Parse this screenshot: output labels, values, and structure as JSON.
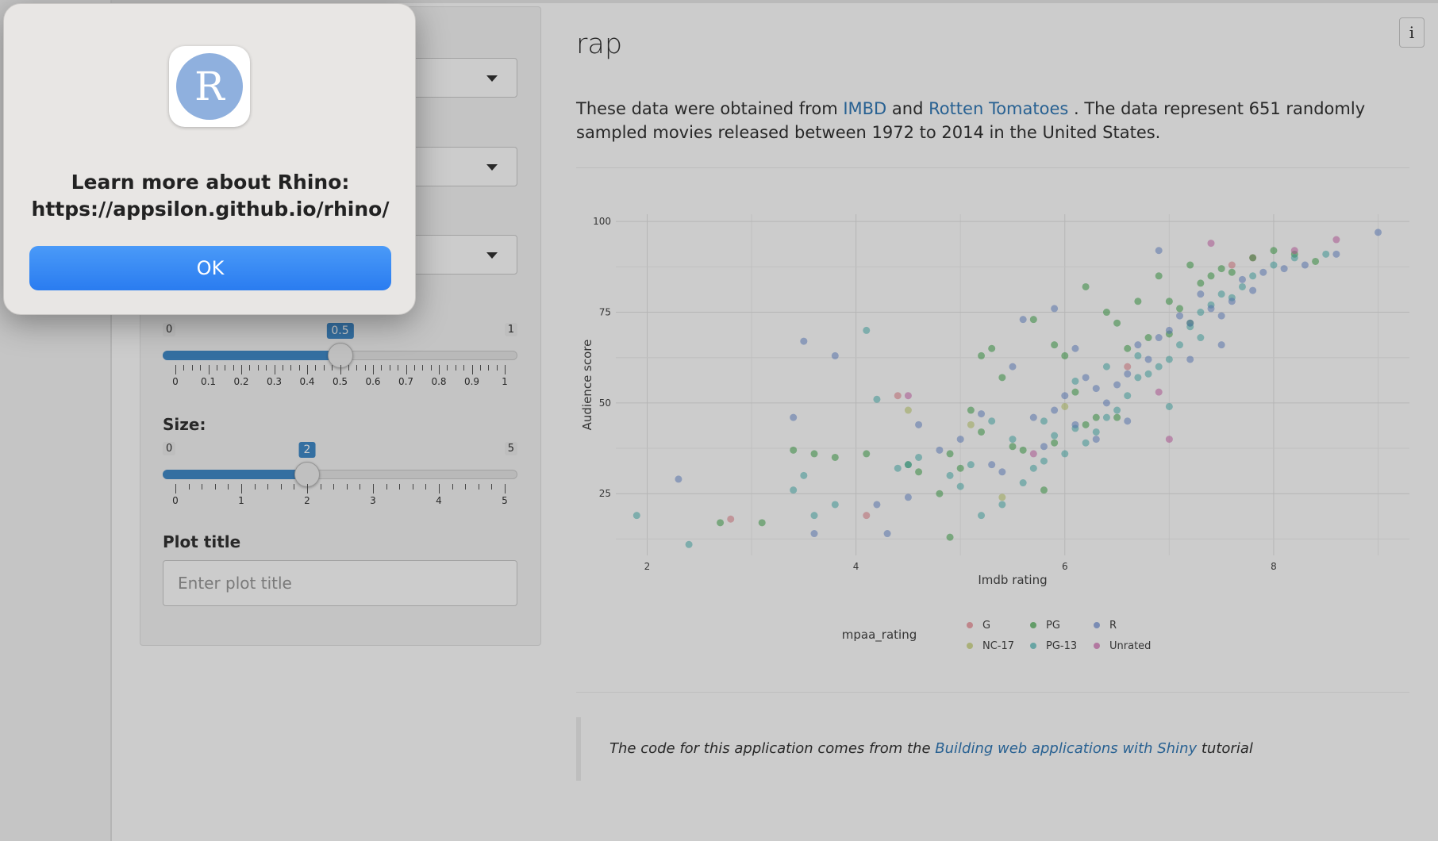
{
  "dialog": {
    "icon_letter": "R",
    "message": "Learn more about Rhino: https://appsilon.github.io/rhino/",
    "ok_label": "OK"
  },
  "sidebar": {
    "alpha_slider": {
      "min": "0",
      "max": "1",
      "value": "0.5",
      "value_fraction": 0.5,
      "tick_labels": [
        "0",
        "0.1",
        "0.2",
        "0.3",
        "0.4",
        "0.5",
        "0.6",
        "0.7",
        "0.8",
        "0.9",
        "1"
      ]
    },
    "size_label": "Size:",
    "size_slider": {
      "min": "0",
      "max": "5",
      "value": "2",
      "value_fraction": 0.4,
      "tick_labels": [
        "0",
        "1",
        "2",
        "3",
        "4",
        "5"
      ]
    },
    "plot_title_label": "Plot title",
    "plot_title_placeholder": "Enter plot title"
  },
  "main": {
    "title": "rap",
    "desc_pre": "These data were obtained from ",
    "imbd_link": "IMBD",
    "desc_and": " and ",
    "rt_link": "Rotten Tomatoes",
    "desc_post": " . The data represent 651 randomly sampled movies released between 1972 to 2014 in the United States.",
    "quote_pre": "The code for this application comes from the ",
    "quote_link": "Building web applications with Shiny",
    "quote_post": " tutorial",
    "info_icon": "i"
  },
  "chart_data": {
    "type": "scatter",
    "xlabel": "Imdb rating",
    "ylabel": "Audience score",
    "xlim": [
      1.7,
      9.3
    ],
    "ylim": [
      8,
      102
    ],
    "x_ticks": [
      2,
      4,
      6,
      8
    ],
    "y_ticks": [
      25,
      50,
      75,
      100
    ],
    "grid": true,
    "legend_title": "mpaa_rating",
    "legend_position": "bottom",
    "series": [
      {
        "name": "G",
        "color": "#e8838c",
        "points": [
          [
            2.8,
            18
          ],
          [
            4.4,
            52
          ],
          [
            4.1,
            19
          ],
          [
            7.6,
            88
          ],
          [
            6.6,
            60
          ],
          [
            7.8,
            90
          ]
        ]
      },
      {
        "name": "NC-17",
        "color": "#c3cf6c",
        "points": [
          [
            4.5,
            48
          ],
          [
            5.1,
            44
          ],
          [
            5.4,
            24
          ],
          [
            6.0,
            49
          ]
        ]
      },
      {
        "name": "PG",
        "color": "#44ab4e",
        "points": [
          [
            2.7,
            17
          ],
          [
            3.1,
            17
          ],
          [
            3.4,
            37
          ],
          [
            3.6,
            36
          ],
          [
            3.8,
            35
          ],
          [
            4.1,
            36
          ],
          [
            4.5,
            33
          ],
          [
            4.8,
            25
          ],
          [
            4.9,
            13
          ],
          [
            5.0,
            32
          ],
          [
            5.1,
            48
          ],
          [
            5.2,
            63
          ],
          [
            5.3,
            65
          ],
          [
            5.4,
            57
          ],
          [
            5.6,
            37
          ],
          [
            5.7,
            73
          ],
          [
            5.8,
            26
          ],
          [
            5.9,
            66
          ],
          [
            6.0,
            63
          ],
          [
            6.1,
            53
          ],
          [
            6.2,
            82
          ],
          [
            6.3,
            46
          ],
          [
            6.4,
            75
          ],
          [
            6.5,
            72
          ],
          [
            6.6,
            65
          ],
          [
            6.7,
            78
          ],
          [
            6.8,
            68
          ],
          [
            6.9,
            85
          ],
          [
            7.0,
            78
          ],
          [
            7.1,
            76
          ],
          [
            7.2,
            88
          ],
          [
            7.3,
            83
          ],
          [
            7.4,
            85
          ],
          [
            7.5,
            87
          ],
          [
            7.6,
            86
          ],
          [
            7.8,
            90
          ],
          [
            8.0,
            92
          ],
          [
            8.4,
            89
          ],
          [
            4.6,
            31
          ],
          [
            4.9,
            36
          ],
          [
            5.2,
            42
          ],
          [
            5.5,
            38
          ],
          [
            5.9,
            39
          ],
          [
            6.2,
            44
          ],
          [
            6.5,
            46
          ],
          [
            7.0,
            69
          ],
          [
            7.2,
            72
          ],
          [
            8.2,
            91
          ]
        ]
      },
      {
        "name": "PG-13",
        "color": "#4fb9b6",
        "points": [
          [
            1.9,
            19
          ],
          [
            2.4,
            11
          ],
          [
            3.4,
            26
          ],
          [
            3.5,
            30
          ],
          [
            3.6,
            19
          ],
          [
            3.8,
            22
          ],
          [
            4.1,
            70
          ],
          [
            4.2,
            51
          ],
          [
            4.4,
            32
          ],
          [
            4.5,
            33
          ],
          [
            4.6,
            35
          ],
          [
            4.9,
            30
          ],
          [
            5.0,
            27
          ],
          [
            5.1,
            33
          ],
          [
            5.2,
            19
          ],
          [
            5.4,
            22
          ],
          [
            5.6,
            28
          ],
          [
            5.7,
            32
          ],
          [
            5.8,
            34
          ],
          [
            5.9,
            41
          ],
          [
            6.0,
            36
          ],
          [
            6.1,
            43
          ],
          [
            6.2,
            39
          ],
          [
            6.3,
            42
          ],
          [
            6.4,
            46
          ],
          [
            6.5,
            48
          ],
          [
            6.6,
            52
          ],
          [
            6.7,
            57
          ],
          [
            6.8,
            58
          ],
          [
            6.9,
            60
          ],
          [
            7.0,
            62
          ],
          [
            7.1,
            66
          ],
          [
            7.2,
            71
          ],
          [
            7.3,
            68
          ],
          [
            7.4,
            77
          ],
          [
            7.5,
            80
          ],
          [
            7.6,
            79
          ],
          [
            7.7,
            82
          ],
          [
            7.8,
            85
          ],
          [
            8.0,
            88
          ],
          [
            8.2,
            90
          ],
          [
            8.5,
            91
          ],
          [
            5.3,
            45
          ],
          [
            5.5,
            40
          ],
          [
            5.8,
            45
          ],
          [
            6.1,
            56
          ],
          [
            6.4,
            60
          ],
          [
            6.7,
            63
          ],
          [
            7.0,
            49
          ],
          [
            7.3,
            75
          ]
        ]
      },
      {
        "name": "R",
        "color": "#6e8fd6",
        "points": [
          [
            2.3,
            29
          ],
          [
            3.4,
            46
          ],
          [
            3.5,
            67
          ],
          [
            3.8,
            63
          ],
          [
            3.6,
            14
          ],
          [
            4.2,
            22
          ],
          [
            4.3,
            14
          ],
          [
            4.5,
            24
          ],
          [
            4.6,
            44
          ],
          [
            4.8,
            37
          ],
          [
            5.0,
            40
          ],
          [
            5.2,
            47
          ],
          [
            5.3,
            33
          ],
          [
            5.4,
            31
          ],
          [
            5.5,
            60
          ],
          [
            5.6,
            73
          ],
          [
            5.7,
            46
          ],
          [
            5.8,
            38
          ],
          [
            5.9,
            48
          ],
          [
            6.0,
            52
          ],
          [
            6.1,
            44
          ],
          [
            6.2,
            57
          ],
          [
            6.3,
            54
          ],
          [
            6.4,
            50
          ],
          [
            6.5,
            55
          ],
          [
            6.6,
            58
          ],
          [
            6.7,
            66
          ],
          [
            6.8,
            62
          ],
          [
            6.9,
            92
          ],
          [
            7.0,
            70
          ],
          [
            7.1,
            74
          ],
          [
            7.2,
            72
          ],
          [
            7.3,
            80
          ],
          [
            7.4,
            76
          ],
          [
            7.5,
            74
          ],
          [
            7.6,
            78
          ],
          [
            7.7,
            84
          ],
          [
            7.8,
            81
          ],
          [
            7.9,
            86
          ],
          [
            8.1,
            87
          ],
          [
            8.3,
            88
          ],
          [
            8.6,
            91
          ],
          [
            9.0,
            97
          ],
          [
            5.9,
            76
          ],
          [
            6.1,
            65
          ],
          [
            6.3,
            40
          ],
          [
            6.6,
            45
          ],
          [
            6.9,
            68
          ],
          [
            7.2,
            62
          ],
          [
            7.5,
            66
          ]
        ]
      },
      {
        "name": "Unrated",
        "color": "#d26ab2",
        "points": [
          [
            4.5,
            52
          ],
          [
            5.7,
            36
          ],
          [
            7.0,
            40
          ],
          [
            7.4,
            94
          ],
          [
            8.2,
            92
          ],
          [
            8.6,
            95
          ],
          [
            6.9,
            53
          ]
        ]
      }
    ]
  }
}
